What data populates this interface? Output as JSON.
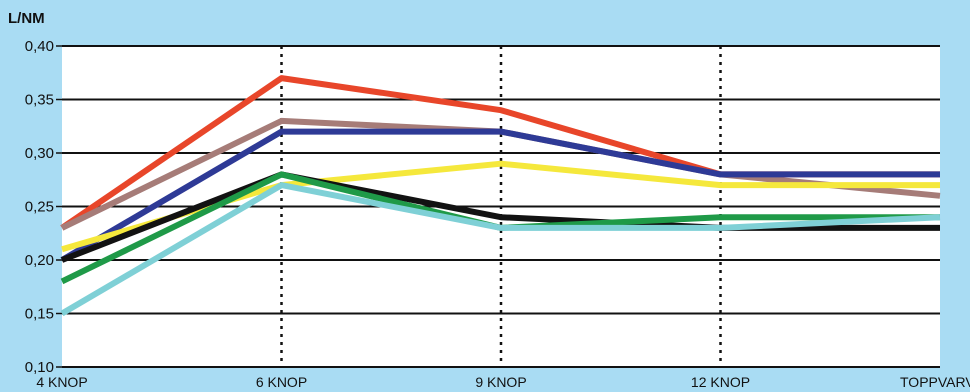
{
  "chart_data": {
    "type": "line",
    "unit_label": "L/NM",
    "categories": [
      "4 KNOP",
      "6 KNOP",
      "9 KNOP",
      "12 KNOP",
      "TOPPVARV"
    ],
    "y_ticks": [
      "0,10",
      "0,15",
      "0,20",
      "0,25",
      "0,30",
      "0,35",
      "0,40"
    ],
    "ylim": [
      0.1,
      0.4
    ],
    "grid": "horizontal solid, vertical dotted",
    "background_color": "#a9dcf3",
    "plot_color": "#ffffff",
    "series": [
      {
        "color": "#e8462a",
        "values": [
          0.23,
          0.37,
          0.34,
          0.28,
          0.28
        ]
      },
      {
        "color": "#a67c78",
        "values": [
          0.23,
          0.33,
          0.32,
          0.28,
          0.26
        ]
      },
      {
        "color": "#2e3a96",
        "values": [
          0.2,
          0.32,
          0.32,
          0.28,
          0.28
        ]
      },
      {
        "color": "#f5e83c",
        "values": [
          0.21,
          0.27,
          0.29,
          0.27,
          0.27
        ]
      },
      {
        "color": "#121212",
        "values": [
          0.2,
          0.28,
          0.24,
          0.23,
          0.23
        ]
      },
      {
        "color": "#1f9a48",
        "values": [
          0.18,
          0.28,
          0.23,
          0.24,
          0.24
        ]
      },
      {
        "color": "#7fd0d6",
        "values": [
          0.15,
          0.27,
          0.23,
          0.23,
          0.24
        ]
      }
    ]
  }
}
